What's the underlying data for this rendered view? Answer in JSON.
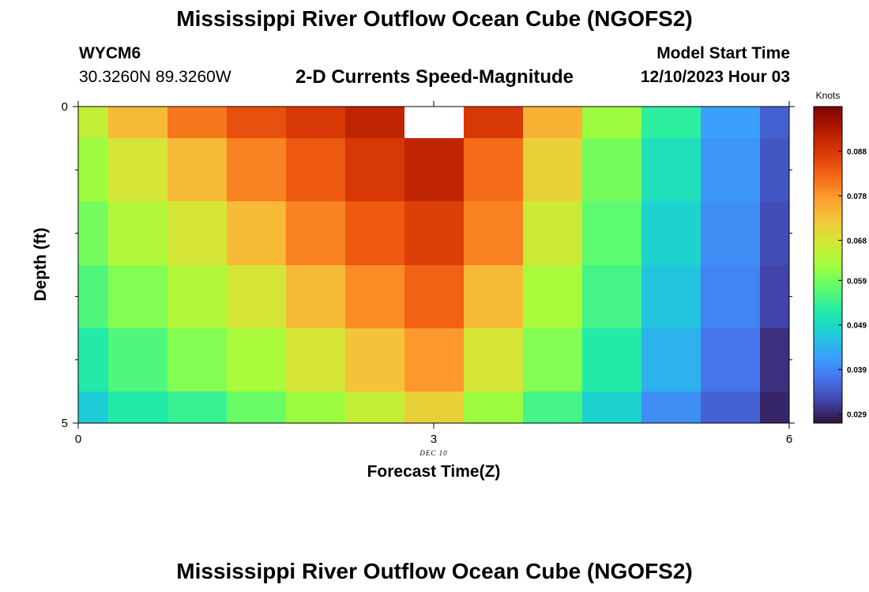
{
  "page": {
    "title": "Mississippi River Outflow Ocean Cube (NGOFS2)",
    "title_repeat": "Mississippi River Outflow Ocean Cube (NGOFS2)"
  },
  "station": {
    "id": "WYCM6",
    "coords": "30.3260N  89.3260W"
  },
  "model_start": {
    "label": "Model Start Time",
    "value": "12/10/2023 Hour 03"
  },
  "chart_data": {
    "type": "heatmap",
    "title": "2-D Currents Speed-Magnitude",
    "xlabel": "Forecast Time(Z)",
    "ylabel": "Depth (ft)",
    "date_label": "DEC 10",
    "xlim": [
      0,
      6
    ],
    "ylim": [
      0,
      5
    ],
    "y_inverted": true,
    "x_ticks": [
      "0",
      "3",
      "6"
    ],
    "x_tick_values": [
      0,
      3,
      6
    ],
    "y_ticks": [
      "0",
      "5"
    ],
    "y_tick_values": [
      0,
      5
    ],
    "colorbar": {
      "unit": "Knots",
      "min": 0.027,
      "max": 0.098,
      "tick_values": [
        0.029,
        0.039,
        0.049,
        0.059,
        0.068,
        0.078,
        0.088
      ],
      "tick_labels": [
        "0.029",
        "0.039",
        "0.049",
        "0.059",
        "0.068",
        "0.078",
        "0.088"
      ],
      "palette": [
        "#30123b",
        "#4145ab",
        "#4675ed",
        "#39a2fc",
        "#1bcfd4",
        "#24eca6",
        "#61fc6c",
        "#a4fc3b",
        "#d1e834",
        "#f3c63a",
        "#fe9b2d",
        "#f36315",
        "#d93806",
        "#b11901",
        "#7a0402"
      ]
    },
    "x_centers": [
      0,
      0.5,
      1,
      1.5,
      2,
      2.5,
      3,
      3.5,
      4,
      4.5,
      5,
      5.5,
      6
    ],
    "y_bins": [
      {
        "top": 0,
        "bottom": 0.5
      },
      {
        "top": 0.5,
        "bottom": 1.5
      },
      {
        "top": 1.5,
        "bottom": 2.5
      },
      {
        "top": 2.5,
        "bottom": 3.5
      },
      {
        "top": 3.5,
        "bottom": 4.5
      },
      {
        "top": 4.5,
        "bottom": 5
      }
    ],
    "values": [
      [
        0.066,
        0.074,
        0.081,
        0.085,
        0.088,
        0.091,
        null,
        0.088,
        0.075,
        0.062,
        0.053,
        0.042,
        0.035
      ],
      [
        0.062,
        0.068,
        0.074,
        0.08,
        0.084,
        0.088,
        0.091,
        0.082,
        0.071,
        0.059,
        0.05,
        0.041,
        0.034
      ],
      [
        0.059,
        0.064,
        0.068,
        0.074,
        0.08,
        0.084,
        0.087,
        0.08,
        0.067,
        0.057,
        0.048,
        0.04,
        0.033
      ],
      [
        0.056,
        0.06,
        0.064,
        0.068,
        0.074,
        0.079,
        0.083,
        0.074,
        0.063,
        0.055,
        0.046,
        0.039,
        0.032
      ],
      [
        0.052,
        0.056,
        0.06,
        0.063,
        0.068,
        0.073,
        0.078,
        0.068,
        0.06,
        0.052,
        0.044,
        0.037,
        0.03
      ],
      [
        0.047,
        0.052,
        0.054,
        0.058,
        0.062,
        0.066,
        0.071,
        0.062,
        0.055,
        0.048,
        0.04,
        0.035,
        0.029
      ]
    ]
  }
}
